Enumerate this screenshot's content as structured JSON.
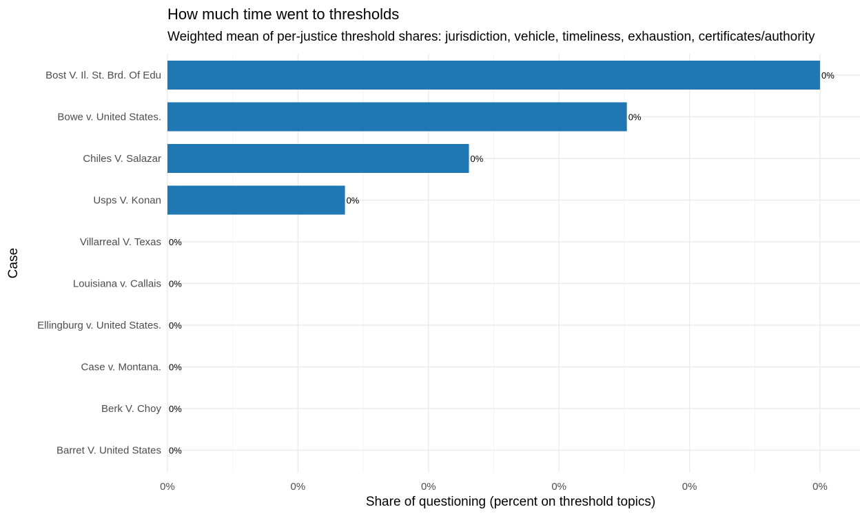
{
  "chart_data": {
    "type": "bar",
    "orientation": "horizontal",
    "title": "How much time went to thresholds",
    "subtitle": "Weighted mean of per-justice threshold shares: jurisdiction, vehicle, timeliness, exhaustion, certificates/authority",
    "xlabel": "Share of questioning (percent on threshold topics)",
    "ylabel": "Case",
    "categories": [
      "Bost V. Il. St. Brd. Of Edu",
      "Bowe v. United States.",
      "Chiles V. Salazar",
      "Usps V. Konan",
      "Villarreal V. Texas",
      "Louisiana v. Callais",
      "Ellingburg v. United States.",
      "Case v. Montana.",
      "Berk V. Choy",
      "Barret V. United States"
    ],
    "values": [
      0.005,
      0.00352,
      0.00231,
      0.00136,
      0,
      0,
      0,
      0,
      0,
      0
    ],
    "data_labels": [
      "0%",
      "0%",
      "0%",
      "0%",
      "0%",
      "0%",
      "0%",
      "0%",
      "0%",
      "0%"
    ],
    "xlim": [
      0,
      0.005
    ],
    "x_ticks": [
      0,
      0.001,
      0.002,
      0.003,
      0.004,
      0.005
    ],
    "x_tick_labels": [
      "0%",
      "0%",
      "0%",
      "0%",
      "0%",
      "0%"
    ],
    "grid": true,
    "bar_color": "#1f77b4"
  }
}
